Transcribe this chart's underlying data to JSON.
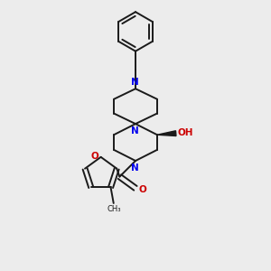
{
  "bg_color": "#ececec",
  "bond_color": "#1a1a1a",
  "N_color": "#0000ee",
  "O_color": "#cc0000",
  "line_width": 1.4,
  "figsize": [
    3.0,
    3.0
  ],
  "dpi": 100,
  "xlim": [
    0.15,
    0.85
  ],
  "ylim": [
    0.05,
    0.98
  ]
}
